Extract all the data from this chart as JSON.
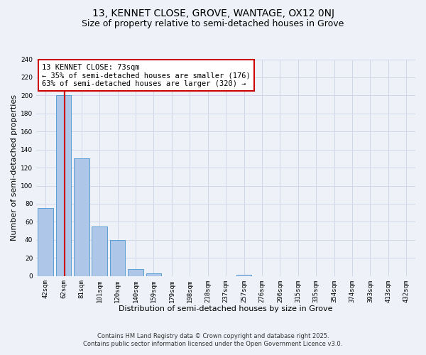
{
  "title": "13, KENNET CLOSE, GROVE, WANTAGE, OX12 0NJ",
  "subtitle": "Size of property relative to semi-detached houses in Grove",
  "xlabel": "Distribution of semi-detached houses by size in Grove",
  "ylabel": "Number of semi-detached properties",
  "bar_labels": [
    "42sqm",
    "62sqm",
    "81sqm",
    "101sqm",
    "120sqm",
    "140sqm",
    "159sqm",
    "179sqm",
    "198sqm",
    "218sqm",
    "237sqm",
    "257sqm",
    "276sqm",
    "296sqm",
    "315sqm",
    "335sqm",
    "354sqm",
    "374sqm",
    "393sqm",
    "413sqm",
    "432sqm"
  ],
  "bar_values": [
    75,
    200,
    130,
    55,
    40,
    8,
    3,
    0,
    0,
    0,
    0,
    1,
    0,
    0,
    0,
    0,
    0,
    0,
    0,
    0,
    0
  ],
  "bar_color": "#aec6e8",
  "bar_edge_color": "#5a9fd4",
  "grid_color": "#d0d8e8",
  "bg_color": "#eef2f8",
  "red_line_color": "#cc0000",
  "annotation_text": "13 KENNET CLOSE: 73sqm\n← 35% of semi-detached houses are smaller (176)\n63% of semi-detached houses are larger (320) →",
  "annotation_box_color": "#ffffff",
  "annotation_box_edge": "#cc0000",
  "ylim": [
    0,
    240
  ],
  "yticks": [
    0,
    20,
    40,
    60,
    80,
    100,
    120,
    140,
    160,
    180,
    200,
    220,
    240
  ],
  "footnote1": "Contains HM Land Registry data © Crown copyright and database right 2025.",
  "footnote2": "Contains public sector information licensed under the Open Government Licence v3.0.",
  "title_fontsize": 10,
  "subtitle_fontsize": 9,
  "axis_label_fontsize": 8,
  "tick_fontsize": 6.5,
  "annotation_fontsize": 7.5,
  "footnote_fontsize": 6.0
}
